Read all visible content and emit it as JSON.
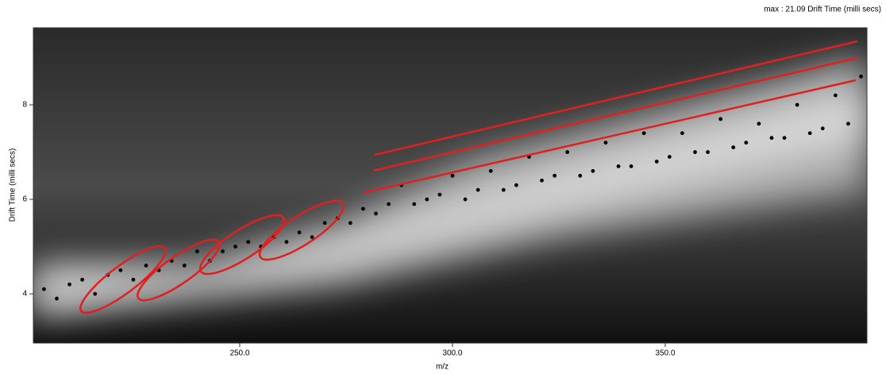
{
  "chart_data": {
    "type": "scatter",
    "title": "max : 21.09 Drift Time (milli secs)",
    "x_label": "m/z",
    "y_label": "Drift Time (milli secs)",
    "xlim": [
      201.5,
      397.4
    ],
    "ylim": [
      2.96,
      9.63
    ],
    "xticks": [
      {
        "value": 250,
        "label": "250.0"
      },
      {
        "value": 300,
        "label": "300.0"
      },
      {
        "value": 350,
        "label": "350.0"
      }
    ],
    "yticks": [
      4,
      6,
      8
    ],
    "color": "#000000",
    "x": [
      204,
      207,
      210,
      213,
      216,
      219,
      222,
      225,
      228,
      231,
      234,
      237,
      240,
      243,
      246,
      249,
      252,
      255,
      258,
      261,
      264,
      267,
      270,
      273,
      276,
      279,
      282,
      285,
      288,
      291,
      294,
      297,
      300,
      303,
      306,
      309,
      312,
      315,
      318,
      321,
      324,
      327,
      330,
      333,
      336,
      339,
      342,
      345,
      348,
      351,
      354,
      357,
      360,
      363,
      366,
      369,
      372,
      375,
      378,
      381,
      384,
      387,
      390,
      393,
      396
    ],
    "values": [
      4.1,
      3.9,
      4.2,
      4.3,
      4.0,
      4.4,
      4.5,
      4.3,
      4.6,
      4.5,
      4.7,
      4.6,
      4.9,
      4.7,
      4.9,
      5.0,
      5.1,
      5.0,
      5.2,
      5.1,
      5.3,
      5.2,
      5.5,
      5.6,
      5.5,
      5.8,
      5.7,
      5.9,
      6.3,
      5.9,
      6.0,
      6.1,
      6.5,
      6.0,
      6.2,
      6.6,
      6.2,
      6.3,
      6.9,
      6.4,
      6.5,
      7.0,
      6.5,
      6.6,
      7.2,
      6.7,
      6.7,
      7.4,
      6.8,
      6.9,
      7.4,
      7.0,
      7.0,
      7.7,
      7.1,
      7.2,
      7.6,
      7.3,
      7.3,
      8.0,
      7.4,
      7.5,
      8.2,
      7.6,
      8.6
    ]
  }
}
